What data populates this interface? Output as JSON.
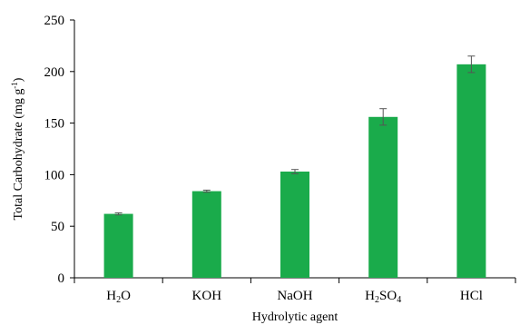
{
  "chart_data": {
    "type": "bar",
    "categories": [
      "H2O",
      "KOH",
      "NaOH",
      "H2SO4",
      "HCl"
    ],
    "category_labels": [
      {
        "base": "H",
        "sub": "2",
        "tail": "O"
      },
      {
        "base": "KOH",
        "sub": "",
        "tail": ""
      },
      {
        "base": "NaOH",
        "sub": "",
        "tail": ""
      },
      {
        "base": "H",
        "sub": "2",
        "tail": "SO",
        "sub2": "4"
      },
      {
        "base": "HCl",
        "sub": "",
        "tail": ""
      }
    ],
    "values": [
      62,
      84,
      103,
      156,
      207
    ],
    "errors": [
      1,
      1,
      2,
      8,
      8
    ],
    "xlabel": "Hydrolytic agent",
    "ylabel_main": "Total Carbohydrate (mg g",
    "ylabel_sup": "-1",
    "ylabel_close": ")",
    "ylim": [
      0,
      250
    ],
    "yticks": [
      0,
      50,
      100,
      150,
      200,
      250
    ],
    "bar_color": "#1aab4b",
    "error_color": "#555555",
    "grid": false
  }
}
